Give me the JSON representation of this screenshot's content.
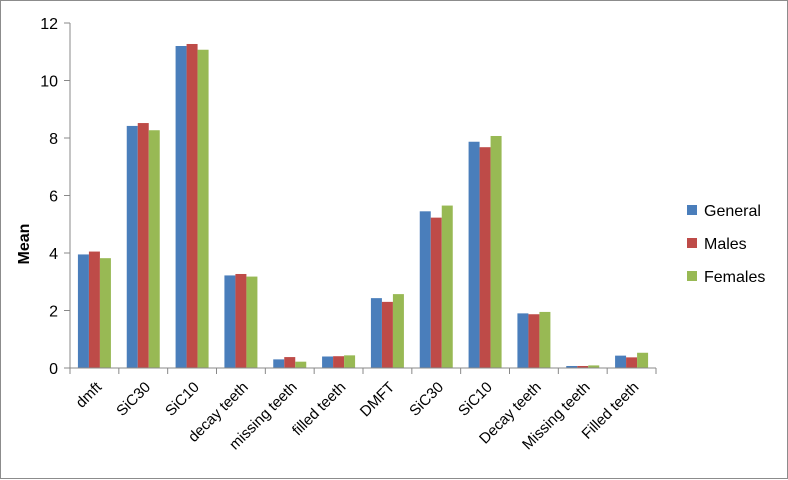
{
  "chart_data": {
    "type": "bar",
    "ylabel": "Mean",
    "xlabel": "",
    "ylim": [
      0,
      12
    ],
    "yticks": [
      0,
      2,
      4,
      6,
      8,
      10,
      12
    ],
    "grid": false,
    "legend_position": "right",
    "categories": [
      "dmft",
      "SiC30",
      "SiC10",
      "decay teeth",
      "missing teeth",
      "filled teeth",
      "DMFT",
      "SiC30",
      "SiC10",
      "Decay teeth",
      "Missing teeth",
      "Filled teeth"
    ],
    "series": [
      {
        "name": "General",
        "color": "#4a7ebb",
        "values": [
          3.95,
          8.42,
          11.2,
          3.22,
          0.3,
          0.4,
          2.43,
          5.45,
          7.87,
          1.9,
          0.07,
          0.43
        ]
      },
      {
        "name": "Males",
        "color": "#be4b48",
        "values": [
          4.05,
          8.52,
          11.27,
          3.27,
          0.38,
          0.41,
          2.3,
          5.23,
          7.68,
          1.87,
          0.07,
          0.37
        ]
      },
      {
        "name": "Females",
        "color": "#98b954",
        "values": [
          3.82,
          8.27,
          11.07,
          3.18,
          0.22,
          0.44,
          2.57,
          5.65,
          8.07,
          1.95,
          0.09,
          0.53
        ]
      }
    ]
  }
}
